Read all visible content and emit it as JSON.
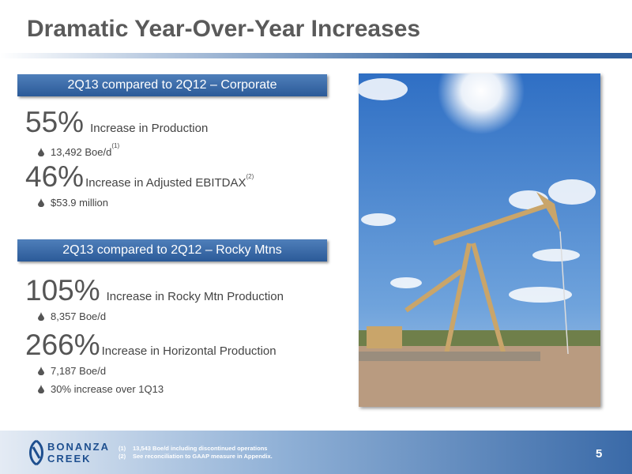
{
  "title": "Dramatic Year-Over-Year Increases",
  "sections": [
    {
      "header": "2Q13 compared to 2Q12 – Corporate",
      "items": [
        {
          "value": "55%",
          "label": "Increase in Production",
          "bullets": [
            {
              "text": "13,492 Boe/d",
              "note": "(1)"
            }
          ]
        },
        {
          "value": "46%",
          "label": "Increase in Adjusted EBITDAX",
          "note": "(2)",
          "bullets": [
            {
              "text": "$53.9 million"
            }
          ]
        }
      ]
    },
    {
      "header": "2Q13 compared to 2Q12 – Rocky Mtns",
      "items": [
        {
          "value": "105%",
          "label": "Increase in Rocky Mtn Production",
          "bullets": [
            {
              "text": "8,357 Boe/d"
            }
          ]
        },
        {
          "value": "266%",
          "label": "Increase in Horizontal Production",
          "bullets": [
            {
              "text": "7,187 Boe/d"
            },
            {
              "text": "30% increase over 1Q13"
            }
          ]
        }
      ]
    }
  ],
  "footer": {
    "logo": [
      "BONANZA",
      "CREEK"
    ],
    "footnotes": [
      {
        "marker": "(1)",
        "text": "13,543 Boe/d including discontinued operations"
      },
      {
        "marker": "(2)",
        "text": "See reconciliation to GAAP measure in Appendix."
      }
    ],
    "page": "5"
  }
}
